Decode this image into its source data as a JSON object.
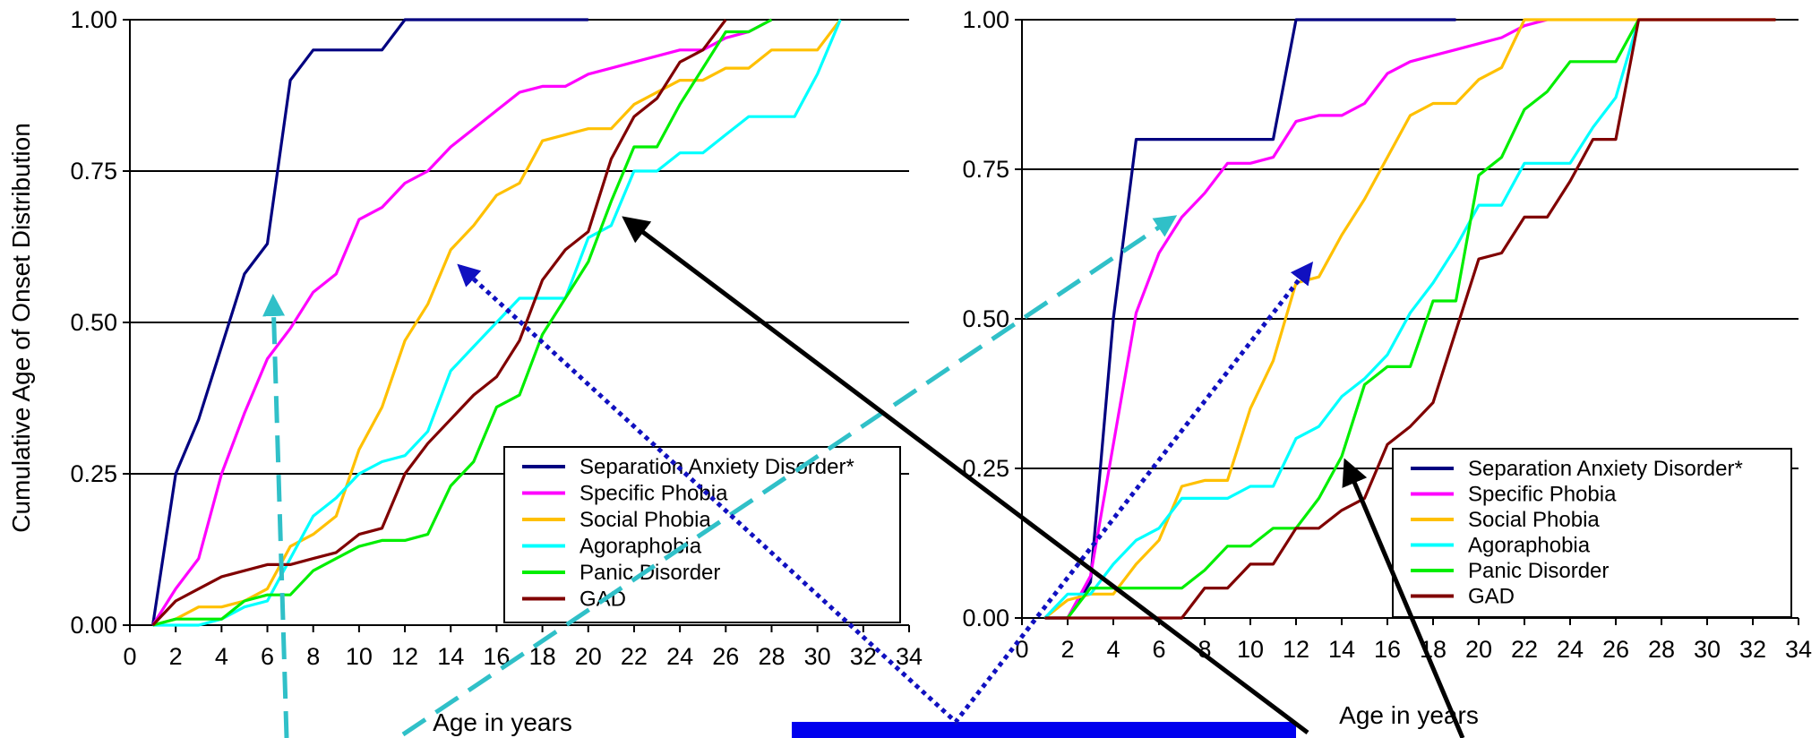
{
  "chart_data": [
    {
      "type": "line",
      "ylabel": "Cumulative Age of Onset Distribution",
      "xlabel": "Age in years",
      "xlim": [
        0,
        34
      ],
      "ylim": [
        0,
        1
      ],
      "x_ticks": [
        "0",
        "2",
        "4",
        "6",
        "8",
        "10",
        "12",
        "14",
        "16",
        "18",
        "20",
        "22",
        "24",
        "26",
        "28",
        "30",
        "32",
        "34"
      ],
      "y_ticks": [
        "0.00",
        "0.25",
        "0.50",
        "0.75",
        "1.00"
      ],
      "grid": "horizontal",
      "legend_position": "bottom-right",
      "series": [
        {
          "name": "Separation Anxiety Disorder*",
          "color": "#000080",
          "x": [
            1,
            2,
            3,
            4,
            5,
            6,
            7,
            8,
            9,
            10,
            11,
            12,
            13,
            14,
            15,
            16,
            17,
            18,
            19,
            20
          ],
          "y": [
            0.0,
            0.25,
            0.34,
            0.46,
            0.58,
            0.63,
            0.9,
            0.95,
            0.95,
            0.95,
            0.95,
            1.0,
            1.0,
            1.0,
            1.0,
            1.0,
            1.0,
            1.0,
            1.0,
            1.0
          ]
        },
        {
          "name": "Specific Phobia",
          "color": "#ff00ff",
          "x": [
            1,
            2,
            3,
            4,
            5,
            6,
            7,
            8,
            9,
            10,
            11,
            12,
            13,
            14,
            15,
            16,
            17,
            18,
            19,
            20,
            21,
            22,
            23,
            24,
            25,
            26,
            27,
            28
          ],
          "y": [
            0.0,
            0.06,
            0.11,
            0.25,
            0.35,
            0.44,
            0.49,
            0.55,
            0.58,
            0.67,
            0.69,
            0.73,
            0.75,
            0.79,
            0.82,
            0.85,
            0.88,
            0.89,
            0.89,
            0.91,
            0.92,
            0.93,
            0.94,
            0.95,
            0.95,
            0.97,
            0.98,
            1.0
          ]
        },
        {
          "name": "Social Phobia",
          "color": "#ffc000",
          "x": [
            1,
            2,
            3,
            4,
            5,
            6,
            7,
            8,
            9,
            10,
            11,
            12,
            13,
            14,
            15,
            16,
            17,
            18,
            19,
            20,
            21,
            22,
            23,
            24,
            25,
            26,
            27,
            28,
            29,
            30,
            31
          ],
          "y": [
            0.0,
            0.01,
            0.03,
            0.03,
            0.04,
            0.06,
            0.13,
            0.15,
            0.18,
            0.29,
            0.36,
            0.47,
            0.53,
            0.62,
            0.66,
            0.71,
            0.73,
            0.8,
            0.81,
            0.82,
            0.82,
            0.86,
            0.88,
            0.9,
            0.9,
            0.92,
            0.92,
            0.95,
            0.95,
            0.95,
            1.0
          ]
        },
        {
          "name": "Agoraphobia",
          "color": "#00ffff",
          "x": [
            1,
            2,
            3,
            4,
            5,
            6,
            7,
            8,
            9,
            10,
            11,
            12,
            13,
            14,
            15,
            16,
            17,
            18,
            19,
            20,
            21,
            22,
            23,
            24,
            25,
            26,
            27,
            28,
            29,
            30,
            31
          ],
          "y": [
            0.0,
            0.0,
            0.0,
            0.01,
            0.03,
            0.04,
            0.11,
            0.18,
            0.21,
            0.25,
            0.27,
            0.28,
            0.32,
            0.42,
            0.46,
            0.5,
            0.54,
            0.54,
            0.54,
            0.64,
            0.66,
            0.75,
            0.75,
            0.78,
            0.78,
            0.81,
            0.84,
            0.84,
            0.84,
            0.91,
            1.0
          ]
        },
        {
          "name": "Panic Disorder",
          "color": "#00ee00",
          "x": [
            1,
            2,
            3,
            4,
            5,
            6,
            7,
            8,
            9,
            10,
            11,
            12,
            13,
            14,
            15,
            16,
            17,
            18,
            19,
            20,
            21,
            22,
            23,
            24,
            25,
            26,
            27,
            28
          ],
          "y": [
            0.0,
            0.01,
            0.01,
            0.01,
            0.04,
            0.05,
            0.05,
            0.09,
            0.11,
            0.13,
            0.14,
            0.14,
            0.15,
            0.23,
            0.27,
            0.36,
            0.38,
            0.48,
            0.54,
            0.6,
            0.7,
            0.79,
            0.79,
            0.86,
            0.92,
            0.98,
            0.98,
            1.0
          ]
        },
        {
          "name": "GAD",
          "color": "#800000",
          "x": [
            1,
            2,
            3,
            4,
            5,
            6,
            7,
            8,
            9,
            10,
            11,
            12,
            13,
            14,
            15,
            16,
            17,
            18,
            19,
            20,
            21,
            22,
            23,
            24,
            25,
            26
          ],
          "y": [
            0.0,
            0.04,
            0.06,
            0.08,
            0.09,
            0.1,
            0.1,
            0.11,
            0.12,
            0.15,
            0.16,
            0.25,
            0.3,
            0.34,
            0.38,
            0.41,
            0.47,
            0.57,
            0.62,
            0.65,
            0.77,
            0.84,
            0.87,
            0.93,
            0.95,
            1.0
          ]
        }
      ]
    },
    {
      "type": "line",
      "ylabel": "",
      "xlabel": "Age in years",
      "xlim": [
        0,
        34
      ],
      "ylim": [
        0,
        1
      ],
      "x_ticks": [
        "0",
        "2",
        "4",
        "6",
        "8",
        "10",
        "12",
        "14",
        "16",
        "18",
        "20",
        "22",
        "24",
        "26",
        "28",
        "30",
        "32",
        "34"
      ],
      "y_ticks": [
        "0.00",
        "0.25",
        "0.50",
        "0.75",
        "1.00"
      ],
      "grid": "horizontal",
      "legend_position": "bottom-right",
      "series": [
        {
          "name": "Separation Anxiety Disorder*",
          "color": "#000080",
          "x": [
            1,
            2,
            3,
            4,
            5,
            6,
            7,
            8,
            9,
            10,
            11,
            12,
            13,
            14,
            15,
            16,
            17,
            18,
            19
          ],
          "y": [
            0.0,
            0.0,
            0.06,
            0.5,
            0.8,
            0.8,
            0.8,
            0.8,
            0.8,
            0.8,
            0.8,
            1.0,
            1.0,
            1.0,
            1.0,
            1.0,
            1.0,
            1.0,
            1.0
          ]
        },
        {
          "name": "Specific Phobia",
          "color": "#ff00ff",
          "x": [
            1,
            2,
            3,
            4,
            5,
            6,
            7,
            8,
            9,
            10,
            11,
            12,
            13,
            14,
            15,
            16,
            17,
            18,
            19,
            20,
            21,
            22,
            23
          ],
          "y": [
            0.0,
            0.0,
            0.07,
            0.29,
            0.51,
            0.61,
            0.67,
            0.71,
            0.76,
            0.76,
            0.77,
            0.83,
            0.84,
            0.84,
            0.86,
            0.91,
            0.93,
            0.94,
            0.95,
            0.96,
            0.97,
            0.99,
            1.0
          ]
        },
        {
          "name": "Social Phobia",
          "color": "#ffc000",
          "x": [
            1,
            2,
            3,
            4,
            5,
            6,
            7,
            8,
            9,
            10,
            11,
            12,
            13,
            14,
            15,
            16,
            17,
            18,
            19,
            20,
            21,
            22,
            23,
            24,
            25,
            26,
            27,
            28,
            29,
            30,
            31,
            32,
            33
          ],
          "y": [
            0.0,
            0.03,
            0.04,
            0.04,
            0.09,
            0.13,
            0.22,
            0.23,
            0.23,
            0.35,
            0.43,
            0.56,
            0.57,
            0.64,
            0.7,
            0.77,
            0.84,
            0.86,
            0.86,
            0.9,
            0.92,
            1.0,
            1.0,
            1.0,
            1.0,
            1.0,
            1.0,
            1.0,
            1.0,
            1.0,
            1.0,
            1.0,
            1.0
          ]
        },
        {
          "name": "Agoraphobia",
          "color": "#00ffff",
          "x": [
            1,
            2,
            3,
            4,
            5,
            6,
            7,
            8,
            9,
            10,
            11,
            12,
            13,
            14,
            15,
            16,
            17,
            18,
            19,
            20,
            21,
            22,
            23,
            24,
            25,
            26,
            27
          ],
          "y": [
            0.0,
            0.04,
            0.04,
            0.09,
            0.13,
            0.15,
            0.2,
            0.2,
            0.2,
            0.22,
            0.22,
            0.3,
            0.32,
            0.37,
            0.4,
            0.44,
            0.51,
            0.56,
            0.62,
            0.69,
            0.69,
            0.76,
            0.76,
            0.76,
            0.82,
            0.87,
            1.0
          ]
        },
        {
          "name": "Panic Disorder",
          "color": "#00ee00",
          "x": [
            1,
            2,
            3,
            4,
            5,
            6,
            7,
            8,
            9,
            10,
            11,
            12,
            13,
            14,
            15,
            16,
            17,
            18,
            19,
            20,
            21,
            22,
            23,
            24,
            25,
            26,
            27
          ],
          "y": [
            0.0,
            0.0,
            0.05,
            0.05,
            0.05,
            0.05,
            0.05,
            0.08,
            0.12,
            0.12,
            0.15,
            0.15,
            0.2,
            0.27,
            0.39,
            0.42,
            0.42,
            0.53,
            0.53,
            0.74,
            0.77,
            0.85,
            0.88,
            0.93,
            0.93,
            0.93,
            1.0
          ]
        },
        {
          "name": "GAD",
          "color": "#800000",
          "x": [
            1,
            2,
            3,
            4,
            5,
            6,
            7,
            8,
            9,
            10,
            11,
            12,
            13,
            14,
            15,
            16,
            17,
            18,
            19,
            20,
            21,
            22,
            23,
            24,
            25,
            26,
            27,
            28,
            29,
            30,
            31,
            32,
            33
          ],
          "y": [
            0.0,
            0.0,
            0.0,
            0.0,
            0.0,
            0.0,
            0.0,
            0.05,
            0.05,
            0.09,
            0.09,
            0.15,
            0.15,
            0.18,
            0.2,
            0.29,
            0.32,
            0.36,
            0.48,
            0.6,
            0.61,
            0.67,
            0.67,
            0.73,
            0.8,
            0.8,
            1.0,
            1.0,
            1.0,
            1.0,
            1.0,
            1.0,
            1.0
          ]
        }
      ]
    }
  ],
  "overlay": {
    "colors": {
      "teal_dashed": "#30c0c8",
      "blue_dotted": "#1010c0",
      "black_arrow": "#000000",
      "blue_bar": "#0000ee"
    }
  }
}
